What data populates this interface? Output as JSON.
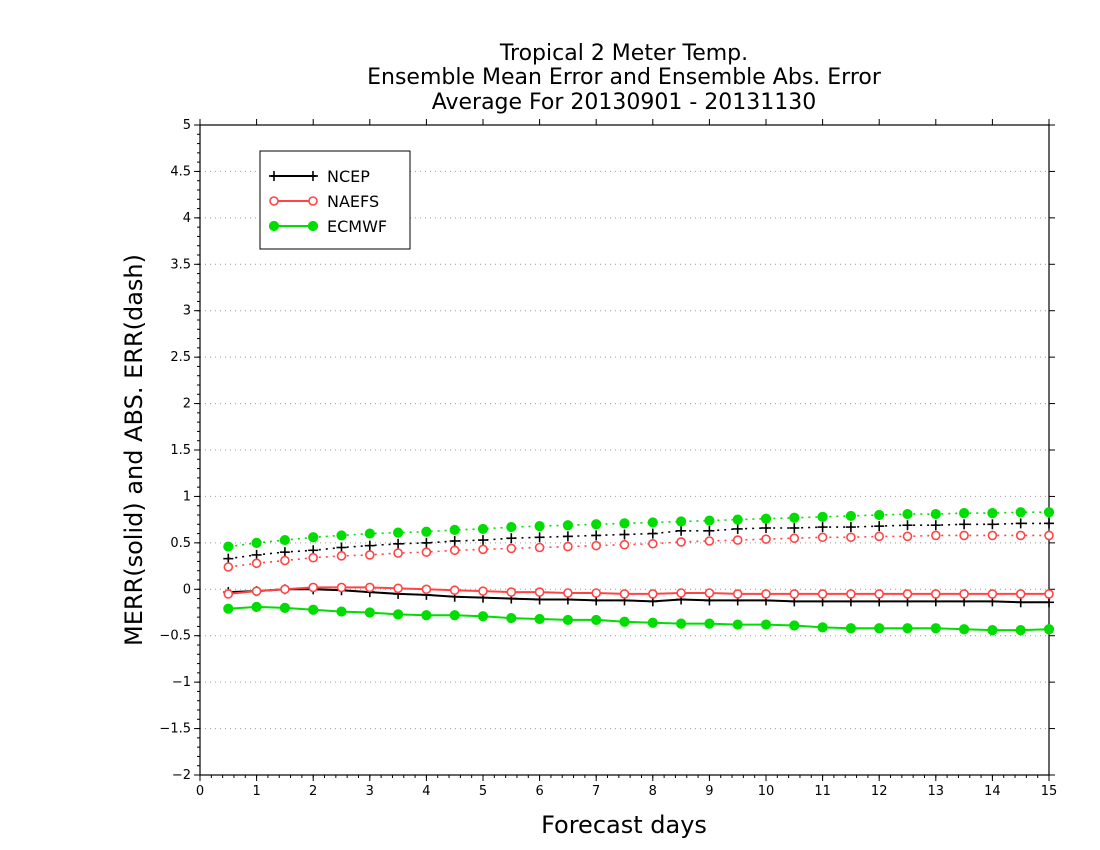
{
  "chart_data": {
    "type": "line",
    "title": [
      "Tropical 2 Meter Temp.",
      "Ensemble Mean Error and Ensemble Abs. Error",
      "Average For 20130901 - 20131130"
    ],
    "xlabel": "Forecast days",
    "ylabel": "MERR(solid) and ABS. ERR(dash)",
    "xlim": [
      0,
      15
    ],
    "ylim": [
      -2,
      5
    ],
    "xticks": [
      0,
      1,
      2,
      3,
      4,
      5,
      6,
      7,
      8,
      9,
      10,
      11,
      12,
      13,
      14,
      15
    ],
    "yticks": [
      -2,
      -1.5,
      -1,
      -0.5,
      0,
      0.5,
      1,
      1.5,
      2,
      2.5,
      3,
      3.5,
      4,
      4.5,
      5
    ],
    "ytick_labels": [
      "−2",
      "−1.5",
      "−1",
      "−0.5",
      "0",
      "0.5",
      "1",
      "1.5",
      "2",
      "2.5",
      "3",
      "3.5",
      "4",
      "4.5",
      "5"
    ],
    "grid": "horizontal dotted",
    "legend_position": "top-left",
    "x": [
      0.5,
      1,
      1.5,
      2,
      2.5,
      3,
      3.5,
      4,
      4.5,
      5,
      5.5,
      6,
      6.5,
      7,
      7.5,
      8,
      8.5,
      9,
      9.5,
      10,
      10.5,
      11,
      11.5,
      12,
      12.5,
      13,
      13.5,
      14,
      14.5,
      15
    ],
    "series": [
      {
        "name": "NCEP",
        "color": "#000000",
        "marker": "plus",
        "merr": [
          -0.03,
          -0.02,
          0.0,
          0.0,
          -0.01,
          -0.03,
          -0.05,
          -0.06,
          -0.08,
          -0.09,
          -0.1,
          -0.11,
          -0.11,
          -0.12,
          -0.12,
          -0.13,
          -0.11,
          -0.12,
          -0.12,
          -0.12,
          -0.13,
          -0.13,
          -0.13,
          -0.13,
          -0.13,
          -0.13,
          -0.13,
          -0.13,
          -0.14,
          -0.14
        ],
        "abs_err": [
          0.33,
          0.37,
          0.4,
          0.42,
          0.45,
          0.47,
          0.49,
          0.5,
          0.52,
          0.53,
          0.55,
          0.56,
          0.57,
          0.58,
          0.59,
          0.6,
          0.63,
          0.63,
          0.65,
          0.66,
          0.66,
          0.67,
          0.67,
          0.68,
          0.69,
          0.69,
          0.7,
          0.7,
          0.71,
          0.71
        ]
      },
      {
        "name": "NAEFS",
        "color": "#ff4444",
        "marker": "open-circle",
        "merr": [
          -0.05,
          -0.02,
          0.0,
          0.02,
          0.02,
          0.02,
          0.01,
          0.0,
          -0.01,
          -0.02,
          -0.03,
          -0.03,
          -0.04,
          -0.04,
          -0.05,
          -0.05,
          -0.04,
          -0.04,
          -0.05,
          -0.05,
          -0.05,
          -0.05,
          -0.05,
          -0.05,
          -0.05,
          -0.05,
          -0.05,
          -0.05,
          -0.05,
          -0.05
        ],
        "abs_err": [
          0.24,
          0.28,
          0.31,
          0.34,
          0.36,
          0.37,
          0.39,
          0.4,
          0.42,
          0.43,
          0.44,
          0.45,
          0.46,
          0.47,
          0.48,
          0.49,
          0.51,
          0.52,
          0.53,
          0.54,
          0.55,
          0.56,
          0.56,
          0.57,
          0.57,
          0.58,
          0.58,
          0.58,
          0.58,
          0.58
        ]
      },
      {
        "name": "ECMWF",
        "color": "#00dd00",
        "marker": "filled-circle",
        "merr": [
          -0.21,
          -0.19,
          -0.2,
          -0.22,
          -0.24,
          -0.25,
          -0.27,
          -0.28,
          -0.28,
          -0.29,
          -0.31,
          -0.32,
          -0.33,
          -0.33,
          -0.35,
          -0.36,
          -0.37,
          -0.37,
          -0.38,
          -0.38,
          -0.39,
          -0.41,
          -0.42,
          -0.42,
          -0.42,
          -0.42,
          -0.43,
          -0.44,
          -0.44,
          -0.43
        ],
        "abs_err": [
          0.46,
          0.5,
          0.53,
          0.56,
          0.58,
          0.6,
          0.61,
          0.62,
          0.64,
          0.65,
          0.67,
          0.68,
          0.69,
          0.7,
          0.71,
          0.72,
          0.73,
          0.74,
          0.75,
          0.76,
          0.77,
          0.78,
          0.79,
          0.8,
          0.81,
          0.81,
          0.82,
          0.82,
          0.83,
          0.83
        ]
      }
    ]
  }
}
